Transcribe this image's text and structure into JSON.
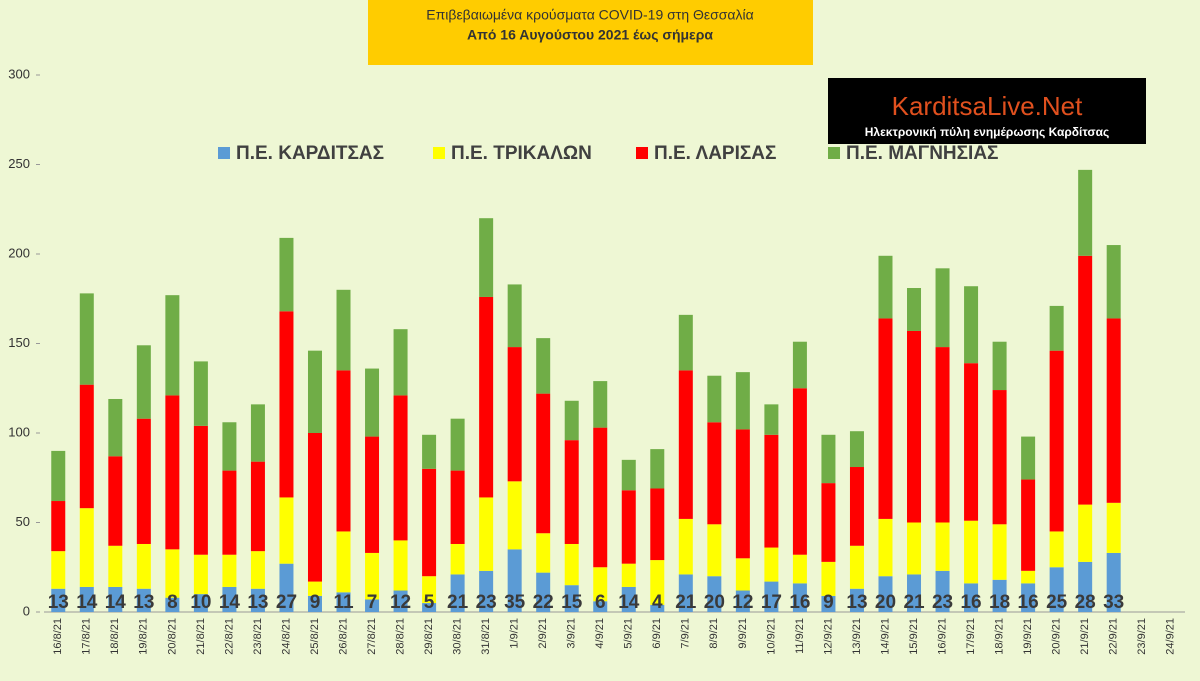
{
  "chart_data": {
    "type": "stacked-bar",
    "title": "Επιβεβαιωμένα κρούσματα COVID-19 στη Θεσσαλία",
    "subtitle": "Από 16 Αυγούστου 2021 έως σήμερα",
    "logo": {
      "title": "KarditsaLive.Net",
      "subtitle": "Ηλεκτρονική πύλη ενημέρωσης Καρδίτσας"
    },
    "legend": "top",
    "categories": [
      "16/8/21",
      "17/8/21",
      "18/8/21",
      "19/8/21",
      "20/8/21",
      "21/8/21",
      "22/8/21",
      "23/8/21",
      "24/8/21",
      "25/8/21",
      "26/8/21",
      "27/8/21",
      "28/8/21",
      "29/8/21",
      "30/8/21",
      "31/8/21",
      "1/9/21",
      "2/9/21",
      "3/9/21",
      "4/9/21",
      "5/9/21",
      "6/9/21",
      "7/9/21",
      "8/9/21",
      "9/9/21",
      "10/9/21",
      "11/9/21",
      "12/9/21",
      "13/9/21",
      "14/9/21",
      "15/9/21",
      "16/9/21",
      "17/9/21",
      "18/9/21",
      "19/9/21",
      "20/9/21",
      "21/9/21",
      "22/9/21",
      "23/9/21",
      "24/9/21"
    ],
    "series": [
      {
        "name": "Π.Ε. ΚΑΡΔΙΤΣΑΣ",
        "color": "#5b9bd5",
        "show_labels": true,
        "values": [
          13,
          14,
          14,
          13,
          8,
          10,
          14,
          13,
          27,
          9,
          11,
          7,
          12,
          5,
          21,
          23,
          35,
          22,
          15,
          6,
          14,
          4,
          21,
          20,
          12,
          17,
          16,
          9,
          13,
          20,
          21,
          23,
          16,
          18,
          16,
          25,
          28,
          33,
          null,
          null
        ]
      },
      {
        "name": "Π.Ε. ΤΡΙΚΑΛΩΝ",
        "color": "#ffff00",
        "values": [
          21,
          44,
          23,
          25,
          27,
          22,
          18,
          21,
          37,
          8,
          34,
          26,
          28,
          15,
          17,
          41,
          38,
          22,
          23,
          19,
          13,
          25,
          31,
          29,
          18,
          19,
          16,
          19,
          24,
          32,
          29,
          27,
          35,
          31,
          7,
          20,
          32,
          28,
          null,
          null
        ]
      },
      {
        "name": "Π.Ε. ΛΑΡΙΣΑΣ",
        "color": "#ff0000",
        "values": [
          28,
          69,
          50,
          70,
          86,
          72,
          47,
          50,
          104,
          83,
          90,
          65,
          81,
          60,
          41,
          112,
          75,
          78,
          58,
          78,
          41,
          40,
          83,
          57,
          72,
          63,
          93,
          44,
          44,
          112,
          107,
          98,
          88,
          75,
          51,
          101,
          139,
          103,
          null,
          null
        ]
      },
      {
        "name": "Π.Ε. ΜΑΓΝΗΣΙΑΣ",
        "color": "#70ad47",
        "values": [
          28,
          51,
          32,
          41,
          56,
          36,
          27,
          32,
          41,
          46,
          45,
          38,
          37,
          19,
          29,
          44,
          35,
          31,
          22,
          26,
          17,
          22,
          31,
          26,
          32,
          17,
          26,
          27,
          20,
          35,
          24,
          44,
          43,
          27,
          24,
          25,
          48,
          41,
          null,
          null
        ]
      }
    ],
    "ylim": [
      0,
      300
    ],
    "yticks": [
      0,
      50,
      100,
      150,
      200,
      250,
      300
    ],
    "grid": false
  }
}
